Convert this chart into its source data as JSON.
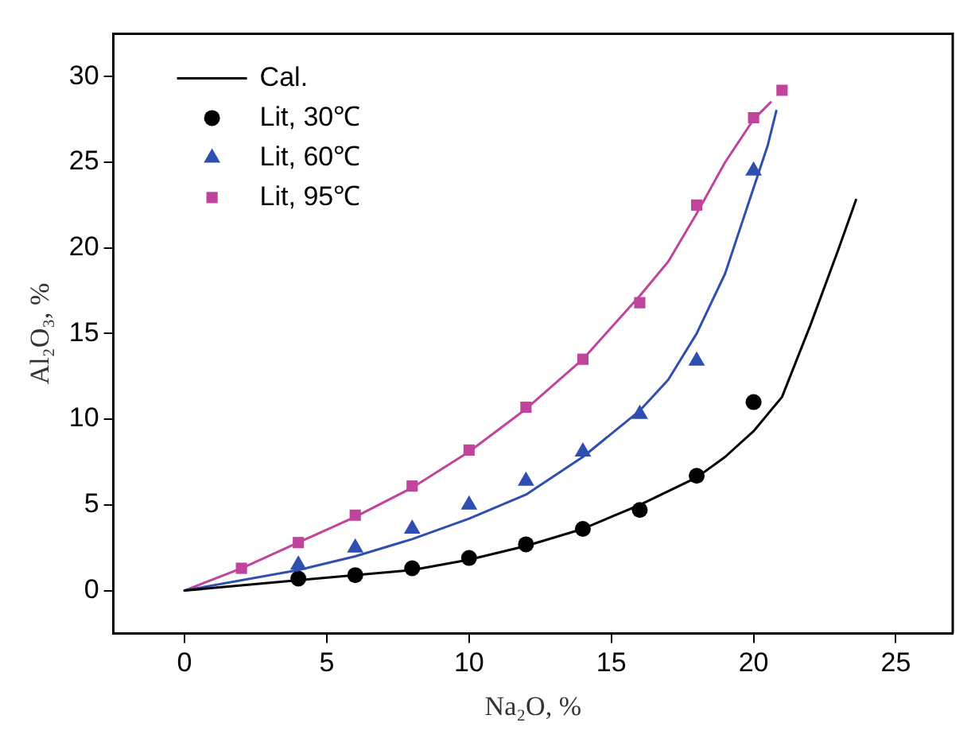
{
  "chart_data": {
    "type": "line",
    "xlabel": "Na₂O, %",
    "ylabel": "Al₂O₃, %",
    "xlim": [
      -2.5,
      27
    ],
    "xticks": [
      0,
      5,
      10,
      15,
      20,
      25
    ],
    "ylim": [
      -2.5,
      32.5
    ],
    "yticks": [
      0,
      5,
      10,
      15,
      20,
      25,
      30
    ],
    "grid": false,
    "legend": "top left",
    "series": [
      {
        "name": "Cal.",
        "color": "#000000",
        "marker": "none",
        "x": [
          0,
          4,
          8,
          10,
          12,
          14,
          16,
          18,
          19,
          20,
          20.5,
          21,
          22,
          23,
          23.6
        ],
        "values": [
          0,
          0.6,
          1.2,
          1.8,
          2.6,
          3.6,
          5,
          6.6,
          7.8,
          9.3,
          10.3,
          11.3,
          15.5,
          20,
          22.8
        ]
      },
      {
        "color": "#2f4fb0",
        "marker": "none",
        "x": [
          0,
          4,
          6,
          8,
          10,
          12,
          14,
          16,
          17,
          18,
          19,
          19.5,
          20,
          20.5,
          20.8
        ],
        "values": [
          0,
          1.2,
          2,
          3,
          4.2,
          5.6,
          7.8,
          10.5,
          12.3,
          15,
          18.5,
          21,
          23.5,
          26,
          28
        ]
      },
      {
        "color": "#c0449c",
        "marker": "none",
        "x": [
          0,
          2,
          4,
          6,
          8,
          10,
          12,
          14,
          16,
          17,
          18,
          19,
          20,
          20.6
        ],
        "values": [
          0,
          1.3,
          2.8,
          4.3,
          6,
          8.1,
          10.6,
          13.5,
          17.2,
          19.2,
          22,
          25,
          27.5,
          28.5
        ]
      },
      {
        "name": "Lit, 30℃",
        "type": "scatter",
        "color": "#000000",
        "marker": "circle",
        "x": [
          4,
          6,
          8,
          10,
          12,
          14,
          16,
          18,
          20
        ],
        "values": [
          0.7,
          0.9,
          1.3,
          1.9,
          2.7,
          3.6,
          4.7,
          6.7,
          11
        ]
      },
      {
        "name": "Lit, 60℃",
        "type": "scatter",
        "color": "#2f4fb0",
        "marker": "triangle",
        "x": [
          4,
          6,
          8,
          10,
          12,
          14,
          16,
          18,
          20
        ],
        "values": [
          1.5,
          2.5,
          3.6,
          5,
          6.4,
          8.1,
          10.3,
          13.4,
          24.5
        ]
      },
      {
        "name": "Lit, 95℃",
        "type": "scatter",
        "color": "#c0449c",
        "marker": "square",
        "x": [
          2,
          4,
          6,
          8,
          10,
          12,
          14,
          16,
          18,
          20,
          21
        ],
        "values": [
          1.3,
          2.8,
          4.4,
          6.1,
          8.2,
          10.7,
          13.5,
          16.8,
          22.5,
          27.6,
          29.2
        ]
      }
    ]
  }
}
